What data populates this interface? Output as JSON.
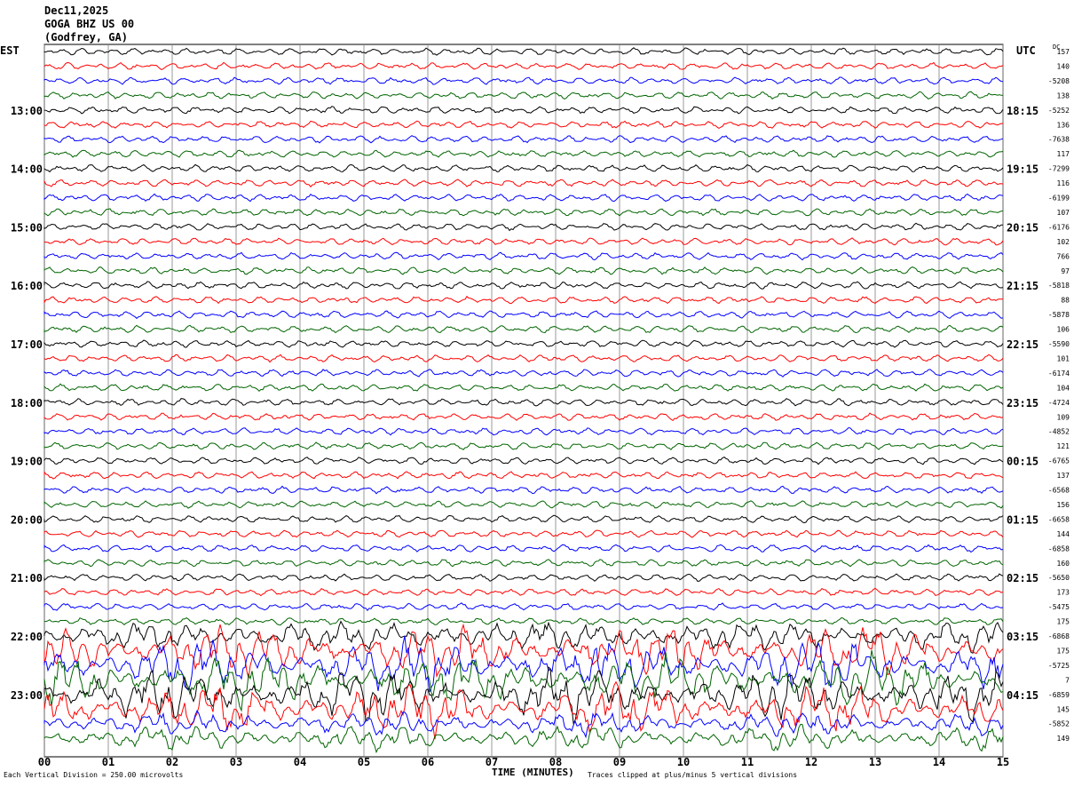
{
  "header": {
    "date": "Dec11,2025",
    "station": "GOGA BHZ US 00",
    "location": "(Godfrey, GA)"
  },
  "left_axis_label": "EST",
  "right_axis_label": "UTC",
  "dc_label": "DC",
  "footer": {
    "scale_note": "Each Vertical Division =  250.00 microvolts",
    "xlabel": "TIME (MINUTES)",
    "clip_note": "Traces clipped at plus/minus 5 vertical divisions"
  },
  "colors": {
    "trace_cycle": [
      "#000000",
      "#ff0000",
      "#0000ff",
      "#006400"
    ],
    "grid": "#808080"
  },
  "chart_data": {
    "type": "line",
    "xlabel": "TIME (MINUTES)",
    "xlim": [
      0,
      15
    ],
    "x_ticks": [
      "00",
      "01",
      "02",
      "03",
      "04",
      "05",
      "06",
      "07",
      "08",
      "09",
      "10",
      "11",
      "12",
      "13",
      "14",
      "15"
    ],
    "grid": true,
    "trace_count": 48,
    "minutes_per_trace": 15,
    "est_hour_labels": [
      "13:00",
      "14:00",
      "15:00",
      "16:00",
      "17:00",
      "18:00",
      "19:00",
      "20:00",
      "21:00",
      "22:00",
      "23:00"
    ],
    "utc_hour_labels": [
      "18:15",
      "19:15",
      "20:15",
      "21:15",
      "22:15",
      "23:15",
      "00:15",
      "01:15",
      "02:15",
      "03:15",
      "04:15"
    ],
    "first_labeled_trace": 4,
    "dc_offsets": [
      "157",
      "140",
      "-5208",
      "138",
      "-5252",
      "136",
      "-7638",
      "117",
      "-7299",
      "116",
      "-6199",
      "107",
      "-6176",
      "102",
      "766",
      "97",
      "-5818",
      "88",
      "-5878",
      "106",
      "-5590",
      "101",
      "-6174",
      "104",
      "-4724",
      "109",
      "-4852",
      "121",
      "-6765",
      "137",
      "-6568",
      "156",
      "-6658",
      "144",
      "-6858",
      "160",
      "-5650",
      "173",
      "-5475",
      "175",
      "-6868",
      "175",
      "-5725",
      "7",
      "-6859",
      "145",
      "-5852",
      "149"
    ]
  }
}
